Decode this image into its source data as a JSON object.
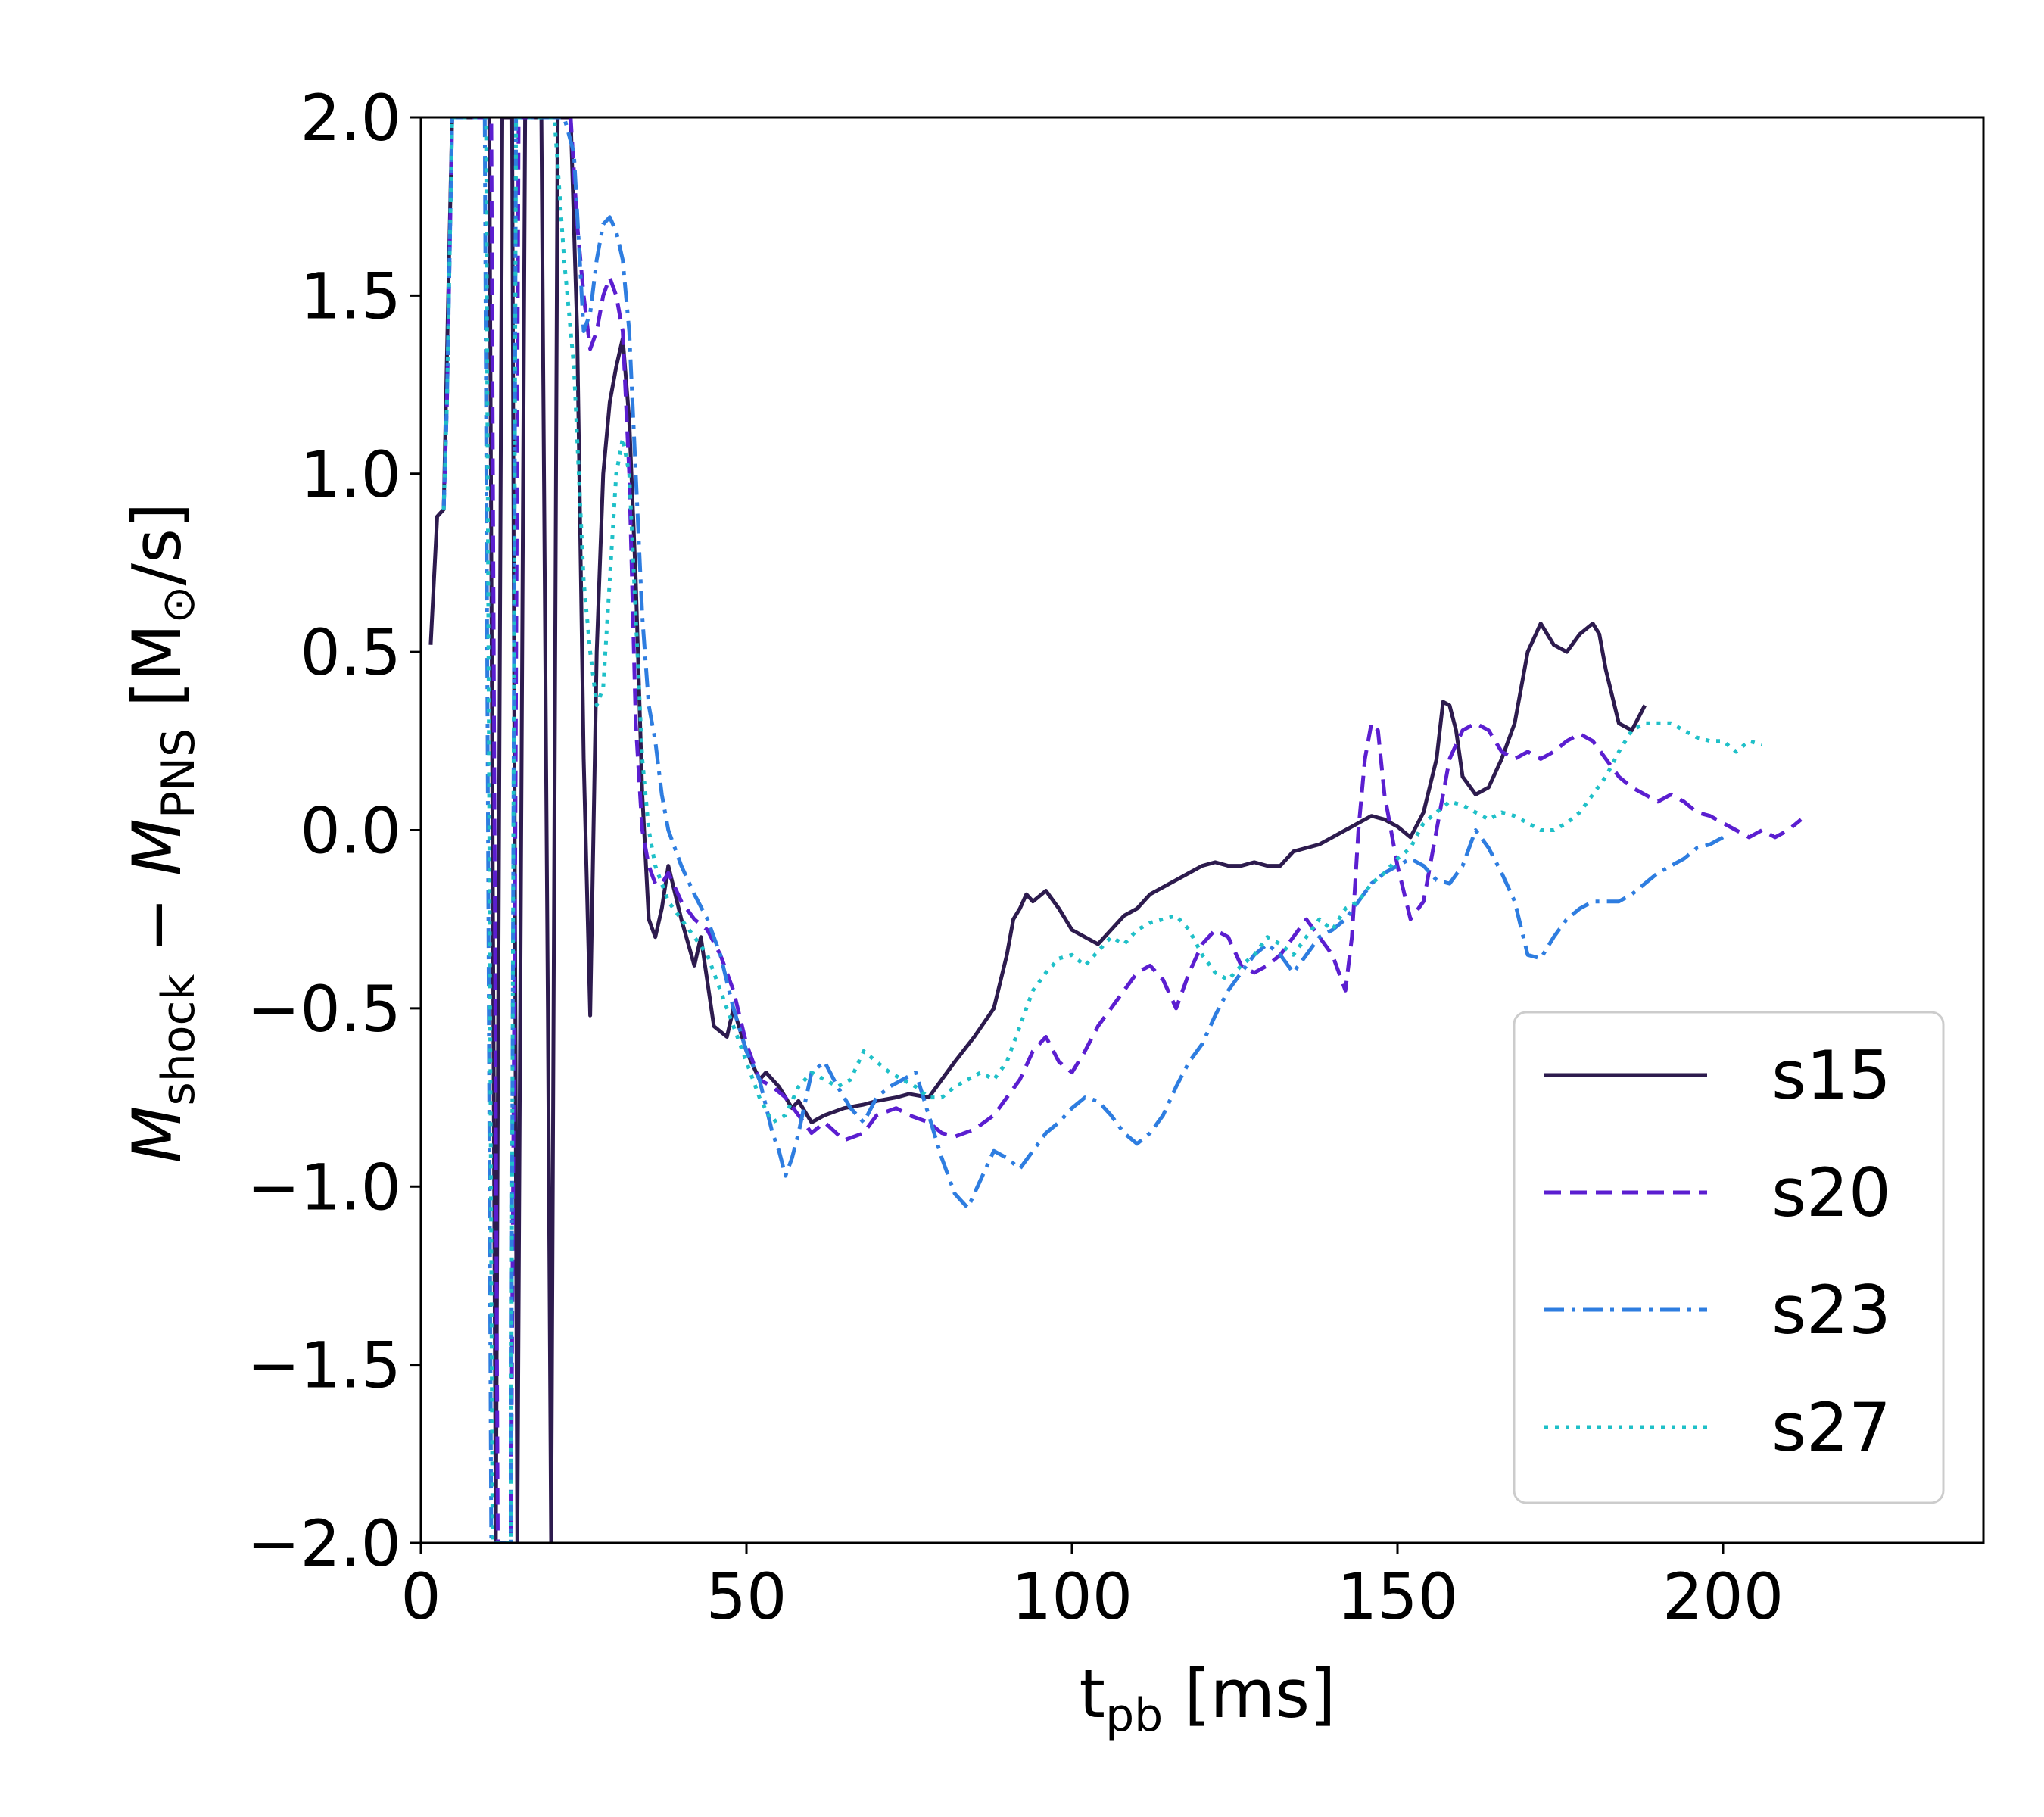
{
  "chart_data": {
    "type": "line",
    "xlabel": "t_pb [ms]",
    "xlabel_parts": {
      "main": "t",
      "sub": "pb",
      "unit": " [ms]"
    },
    "ylabel": "Ṁ_shock − Ṁ_PNS [M_⊙/s]",
    "ylabel_parts": {
      "m1": "M",
      "s1": "shock",
      "op": " − ",
      "m2": "M",
      "s2": "PNS",
      "u1": " [M",
      "u2": "⊙",
      "u3": "/s]"
    },
    "xlim": [
      0,
      240
    ],
    "ylim": [
      -2.0,
      2.0
    ],
    "xticks": [
      0,
      50,
      100,
      150,
      200
    ],
    "xtick_labels": [
      "0",
      "50",
      "100",
      "150",
      "200"
    ],
    "yticks": [
      -2.0,
      -1.5,
      -1.0,
      -0.5,
      0.0,
      0.5,
      1.0,
      1.5,
      2.0
    ],
    "ytick_labels": [
      "−2.0",
      "−1.5",
      "−1.0",
      "−0.5",
      "0.0",
      "0.5",
      "1.0",
      "1.5",
      "2.0"
    ],
    "grid": false,
    "legend_position": "lower-right",
    "series": [
      {
        "name": "s15",
        "color": "#2d1b4e",
        "dash": "solid",
        "x": [
          1.5,
          2.5,
          3.5,
          4.2,
          4.8,
          5.2,
          10.5,
          11.0,
          11.5,
          12.5,
          14.0,
          14.4,
          14.8,
          16.0,
          18.5,
          19.5,
          20.0,
          21.0,
          23.0,
          24.0,
          25.0,
          26.0,
          27.0,
          28.0,
          29.0,
          30.0,
          31.0,
          32.0,
          33.0,
          34.0,
          35.0,
          36.0,
          37.0,
          38.0,
          40.0,
          42.0,
          43.0,
          45.0,
          47.0,
          48.0,
          50.0,
          52.0,
          53.0,
          55.0,
          57.0,
          58.0,
          60.0,
          62.0,
          65.0,
          68.0,
          70.0,
          73.0,
          75.0,
          78.0,
          80.0,
          82.0,
          85.0,
          88.0,
          90.0,
          91.0,
          92.0,
          93.0,
          94.0,
          96.0,
          98.0,
          100.0,
          102.0,
          104.0,
          106.0,
          108.0,
          110.0,
          112.0,
          114.0,
          116.0,
          118.0,
          120.0,
          122.0,
          124.0,
          126.0,
          128.0,
          130.0,
          132.0,
          134.0,
          136.0,
          138.0,
          140.0,
          142.0,
          144.0,
          146.0,
          148.0,
          150.0,
          152.0,
          154.0,
          156.0,
          157.0,
          158.0,
          159.0,
          160.0,
          162.0,
          164.0,
          166.0,
          168.0,
          170.0,
          172.0,
          174.0,
          176.0,
          178.0,
          180.0,
          181.0,
          182.0,
          184.0,
          186.0,
          188.0
        ],
        "y": [
          0.52,
          0.88,
          0.9,
          1.5,
          2.0,
          2.0,
          2.0,
          0.0,
          -2.0,
          2.0,
          2.0,
          0.0,
          -2.0,
          2.0,
          2.0,
          -0.5,
          -2.0,
          2.0,
          2.0,
          1.4,
          0.2,
          -0.52,
          0.5,
          1.0,
          1.2,
          1.3,
          1.38,
          1.15,
          0.7,
          0.1,
          -0.25,
          -0.3,
          -0.22,
          -0.1,
          -0.25,
          -0.38,
          -0.3,
          -0.55,
          -0.58,
          -0.5,
          -0.62,
          -0.7,
          -0.68,
          -0.72,
          -0.78,
          -0.76,
          -0.82,
          -0.8,
          -0.78,
          -0.77,
          -0.76,
          -0.75,
          -0.74,
          -0.75,
          -0.7,
          -0.65,
          -0.58,
          -0.5,
          -0.35,
          -0.25,
          -0.22,
          -0.18,
          -0.2,
          -0.17,
          -0.22,
          -0.28,
          -0.3,
          -0.32,
          -0.28,
          -0.24,
          -0.22,
          -0.18,
          -0.16,
          -0.14,
          -0.12,
          -0.1,
          -0.09,
          -0.1,
          -0.1,
          -0.09,
          -0.1,
          -0.1,
          -0.06,
          -0.05,
          -0.04,
          -0.02,
          0.0,
          0.02,
          0.04,
          0.03,
          0.01,
          -0.02,
          0.05,
          0.2,
          0.36,
          0.35,
          0.28,
          0.15,
          0.1,
          0.12,
          0.2,
          0.3,
          0.5,
          0.58,
          0.52,
          0.5,
          0.55,
          0.58,
          0.55,
          0.45,
          0.3,
          0.28,
          0.35
        ]
      },
      {
        "name": "s20",
        "color": "#5b1ed0",
        "dash": "dashed",
        "x": [
          3.5,
          4.0,
          4.8,
          5.2,
          10.8,
          11.3,
          11.8,
          13.8,
          14.5,
          15.0,
          21.0,
          23.0,
          24.0,
          25.0,
          26.0,
          27.0,
          28.0,
          29.0,
          30.0,
          31.0,
          32.0,
          33.0,
          34.0,
          35.0,
          36.0,
          37.0,
          38.0,
          40.0,
          42.0,
          44.0,
          46.0,
          48.0,
          50.0,
          52.0,
          54.0,
          56.0,
          58.0,
          60.0,
          62.0,
          65.0,
          68.0,
          70.0,
          73.0,
          75.0,
          78.0,
          80.0,
          82.0,
          85.0,
          88.0,
          90.0,
          92.0,
          94.0,
          96.0,
          98.0,
          100.0,
          102.0,
          104.0,
          106.0,
          108.0,
          110.0,
          112.0,
          114.0,
          116.0,
          118.0,
          120.0,
          122.0,
          124.0,
          126.0,
          128.0,
          130.0,
          132.0,
          134.0,
          136.0,
          138.0,
          140.0,
          142.0,
          143.0,
          144.0,
          145.0,
          146.0,
          147.0,
          148.0,
          150.0,
          152.0,
          154.0,
          156.0,
          158.0,
          160.0,
          162.0,
          164.0,
          166.0,
          168.0,
          170.0,
          172.0,
          174.0,
          176.0,
          178.0,
          180.0,
          182.0,
          184.0,
          186.0,
          188.0,
          190.0,
          192.0,
          194.0,
          196.0,
          198.0,
          200.0,
          202.0,
          204.0,
          206.0,
          208.0,
          210.0,
          212.0
        ],
        "y": [
          0.9,
          1.2,
          2.0,
          2.0,
          2.0,
          0.0,
          -2.0,
          -2.0,
          0.0,
          2.0,
          2.0,
          2.0,
          1.7,
          1.5,
          1.35,
          1.4,
          1.5,
          1.55,
          1.5,
          1.4,
          1.0,
          0.3,
          0.0,
          -0.1,
          -0.15,
          -0.15,
          -0.12,
          -0.2,
          -0.25,
          -0.28,
          -0.35,
          -0.45,
          -0.6,
          -0.7,
          -0.72,
          -0.75,
          -0.8,
          -0.85,
          -0.82,
          -0.87,
          -0.85,
          -0.8,
          -0.78,
          -0.8,
          -0.82,
          -0.85,
          -0.86,
          -0.84,
          -0.8,
          -0.75,
          -0.7,
          -0.62,
          -0.58,
          -0.65,
          -0.68,
          -0.62,
          -0.55,
          -0.5,
          -0.45,
          -0.4,
          -0.38,
          -0.42,
          -0.5,
          -0.4,
          -0.32,
          -0.28,
          -0.3,
          -0.38,
          -0.4,
          -0.38,
          -0.35,
          -0.3,
          -0.25,
          -0.3,
          -0.35,
          -0.45,
          -0.3,
          0.0,
          0.2,
          0.3,
          0.28,
          0.1,
          -0.1,
          -0.25,
          -0.2,
          0.0,
          0.2,
          0.28,
          0.3,
          0.28,
          0.22,
          0.2,
          0.22,
          0.2,
          0.22,
          0.25,
          0.27,
          0.25,
          0.2,
          0.15,
          0.12,
          0.1,
          0.08,
          0.1,
          0.08,
          0.05,
          0.04,
          0.02,
          0.0,
          -0.02,
          0.0,
          -0.02,
          0.0,
          0.03
        ]
      },
      {
        "name": "s23",
        "color": "#2e7de0",
        "dash": "dashdot",
        "x": [
          3.5,
          4.0,
          4.8,
          5.2,
          9.8,
          10.3,
          10.8,
          13.8,
          14.2,
          14.6,
          20.5,
          22.0,
          23.5,
          25.0,
          26.0,
          27.0,
          28.0,
          29.0,
          30.0,
          31.0,
          32.0,
          33.0,
          34.0,
          35.0,
          36.0,
          37.0,
          38.0,
          40.0,
          42.0,
          44.0,
          46.0,
          48.0,
          50.0,
          52.0,
          54.0,
          55.0,
          56.0,
          57.0,
          58.0,
          60.0,
          62.0,
          64.0,
          66.0,
          68.0,
          70.0,
          72.0,
          74.0,
          76.0,
          78.0,
          80.0,
          82.0,
          84.0,
          86.0,
          88.0,
          90.0,
          92.0,
          94.0,
          96.0,
          98.0,
          100.0,
          102.0,
          104.0,
          106.0,
          108.0,
          110.0,
          112.0,
          114.0,
          116.0,
          118.0,
          120.0,
          122.0,
          124.0,
          126.0,
          128.0,
          130.0,
          132.0,
          134.0,
          136.0,
          138.0,
          140.0,
          142.0,
          144.0,
          146.0,
          148.0,
          150.0,
          152.0,
          154.0,
          156.0,
          158.0,
          160.0,
          162.0,
          164.0,
          166.0,
          168.0,
          170.0,
          172.0,
          174.0,
          176.0,
          178.0,
          180.0,
          182.0,
          184.0,
          186.0,
          188.0,
          190.0,
          192.0,
          194.0,
          196.0,
          198.0,
          200.0
        ],
        "y": [
          0.9,
          1.2,
          2.0,
          2.0,
          2.0,
          0.0,
          -2.0,
          -2.0,
          0.0,
          2.0,
          2.0,
          2.0,
          1.9,
          1.4,
          1.45,
          1.6,
          1.7,
          1.72,
          1.68,
          1.6,
          1.4,
          1.0,
          0.6,
          0.35,
          0.25,
          0.1,
          0.0,
          -0.1,
          -0.18,
          -0.25,
          -0.35,
          -0.5,
          -0.62,
          -0.7,
          -0.85,
          -0.9,
          -0.97,
          -0.92,
          -0.85,
          -0.68,
          -0.65,
          -0.72,
          -0.78,
          -0.82,
          -0.75,
          -0.72,
          -0.7,
          -0.68,
          -0.8,
          -0.92,
          -1.02,
          -1.06,
          -0.98,
          -0.9,
          -0.92,
          -0.95,
          -0.9,
          -0.85,
          -0.82,
          -0.78,
          -0.75,
          -0.76,
          -0.8,
          -0.85,
          -0.88,
          -0.85,
          -0.8,
          -0.72,
          -0.65,
          -0.6,
          -0.52,
          -0.45,
          -0.4,
          -0.35,
          -0.32,
          -0.35,
          -0.4,
          -0.35,
          -0.3,
          -0.28,
          -0.25,
          -0.2,
          -0.15,
          -0.12,
          -0.1,
          -0.08,
          -0.1,
          -0.14,
          -0.15,
          -0.1,
          0.0,
          -0.05,
          -0.12,
          -0.2,
          -0.35,
          -0.36,
          -0.3,
          -0.25,
          -0.22,
          -0.2,
          -0.2,
          -0.2,
          -0.18,
          -0.15,
          -0.12,
          -0.1,
          -0.08,
          -0.05,
          -0.04,
          -0.02
        ]
      },
      {
        "name": "s27",
        "color": "#1fc0c8",
        "dash": "dotted",
        "x": [
          3.5,
          4.0,
          4.8,
          5.2,
          10.0,
          10.5,
          11.0,
          13.8,
          14.2,
          14.6,
          20.5,
          22.0,
          23.5,
          25.0,
          26.0,
          27.0,
          28.0,
          29.0,
          30.0,
          31.0,
          32.0,
          33.0,
          34.0,
          35.0,
          36.0,
          37.0,
          38.0,
          40.0,
          42.0,
          44.0,
          46.0,
          48.0,
          50.0,
          52.0,
          54.0,
          56.0,
          58.0,
          60.0,
          62.0,
          64.0,
          66.0,
          68.0,
          70.0,
          72.0,
          74.0,
          76.0,
          78.0,
          80.0,
          82.0,
          84.0,
          86.0,
          88.0,
          90.0,
          92.0,
          94.0,
          96.0,
          98.0,
          100.0,
          102.0,
          104.0,
          106.0,
          108.0,
          110.0,
          112.0,
          114.0,
          116.0,
          118.0,
          120.0,
          122.0,
          124.0,
          126.0,
          128.0,
          130.0,
          132.0,
          134.0,
          136.0,
          138.0,
          140.0,
          142.0,
          144.0,
          146.0,
          148.0,
          150.0,
          152.0,
          154.0,
          156.0,
          158.0,
          160.0,
          162.0,
          164.0,
          166.0,
          168.0,
          170.0,
          172.0,
          174.0,
          176.0,
          178.0,
          180.0,
          182.0,
          184.0,
          186.0,
          188.0,
          190.0,
          192.0,
          194.0,
          196.0,
          198.0,
          200.0,
          202.0,
          204.0,
          206.0
        ],
        "y": [
          0.9,
          1.2,
          2.0,
          2.0,
          2.0,
          0.0,
          -2.0,
          -2.0,
          0.0,
          2.0,
          2.0,
          1.6,
          1.3,
          0.7,
          0.5,
          0.35,
          0.4,
          0.7,
          1.0,
          1.1,
          1.0,
          0.6,
          0.2,
          0.0,
          -0.1,
          -0.15,
          -0.2,
          -0.25,
          -0.3,
          -0.35,
          -0.45,
          -0.55,
          -0.65,
          -0.75,
          -0.82,
          -0.8,
          -0.72,
          -0.68,
          -0.7,
          -0.72,
          -0.7,
          -0.62,
          -0.65,
          -0.68,
          -0.7,
          -0.72,
          -0.75,
          -0.75,
          -0.72,
          -0.7,
          -0.68,
          -0.7,
          -0.65,
          -0.55,
          -0.45,
          -0.4,
          -0.36,
          -0.35,
          -0.38,
          -0.34,
          -0.3,
          -0.32,
          -0.28,
          -0.26,
          -0.25,
          -0.24,
          -0.28,
          -0.35,
          -0.4,
          -0.42,
          -0.38,
          -0.35,
          -0.3,
          -0.32,
          -0.35,
          -0.3,
          -0.25,
          -0.28,
          -0.22,
          -0.2,
          -0.15,
          -0.12,
          -0.08,
          -0.05,
          0.02,
          0.05,
          0.08,
          0.07,
          0.05,
          0.03,
          0.05,
          0.04,
          0.02,
          0.0,
          0.0,
          0.02,
          0.05,
          0.1,
          0.15,
          0.22,
          0.28,
          0.3,
          0.3,
          0.3,
          0.28,
          0.26,
          0.25,
          0.25,
          0.22,
          0.25,
          0.24
        ]
      }
    ]
  }
}
